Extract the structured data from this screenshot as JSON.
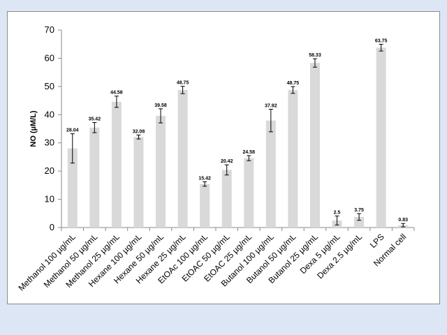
{
  "chart_data": {
    "type": "bar",
    "title": "",
    "xlabel": "",
    "ylabel": "NO (µM/L)",
    "ylim": [
      0,
      70
    ],
    "yticks": [
      0,
      10,
      20,
      30,
      40,
      50,
      60,
      70
    ],
    "grid": false,
    "legend": "none",
    "bar_color": "#d9d9d9",
    "categories": [
      "Methanol 100 µg/mL",
      "Methanol 50 µg/mL",
      "Methanol 25 µg/mL",
      "Hexane 100 µg/mL",
      "Hexane 50 µg/mL",
      "Hexane 25 µg/mL",
      "EtOAc 100 µg/mL",
      "EtOAC 50 µg/mL",
      "EtOAC 25 µg/mL",
      "Butanol 100 µg/mL",
      "Butanol 50 µg/mL",
      "Butanol 25 µg/mL",
      "Dexa 5 µg/mL",
      "Dexa 2.5 µg/mL",
      "LPS",
      "Normal cell"
    ],
    "values": [
      28.04,
      35.42,
      44.58,
      32.08,
      39.58,
      48.75,
      15.42,
      20.42,
      24.58,
      37.92,
      48.75,
      58.33,
      2.5,
      3.75,
      63.75,
      0.83
    ],
    "data_labels": [
      "28.04",
      "35.42",
      "44.58",
      "32.08",
      "39.58",
      "48.75",
      "15.42",
      "20.42",
      "24.58",
      "37.92",
      "48.75",
      "58.33",
      "2.5",
      "3.75",
      "63.75",
      "0.83"
    ],
    "errors": [
      5.2,
      1.8,
      2.0,
      0.7,
      2.5,
      1.3,
      0.8,
      1.8,
      0.9,
      4.0,
      1.2,
      1.5,
      1.6,
      1.2,
      1.2,
      0.6
    ]
  }
}
